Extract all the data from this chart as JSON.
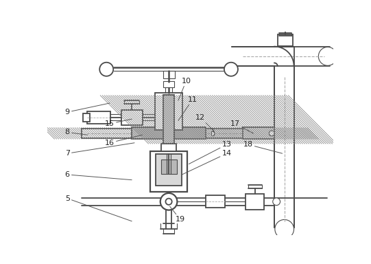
{
  "bg_color": "#ffffff",
  "lc": "#4a4a4a",
  "lw_main": 1.3,
  "lw_thin": 0.8,
  "gray_fill": "#d0d0d0",
  "dark_fill": "#a0a0a0",
  "hatch_color": "#888888"
}
